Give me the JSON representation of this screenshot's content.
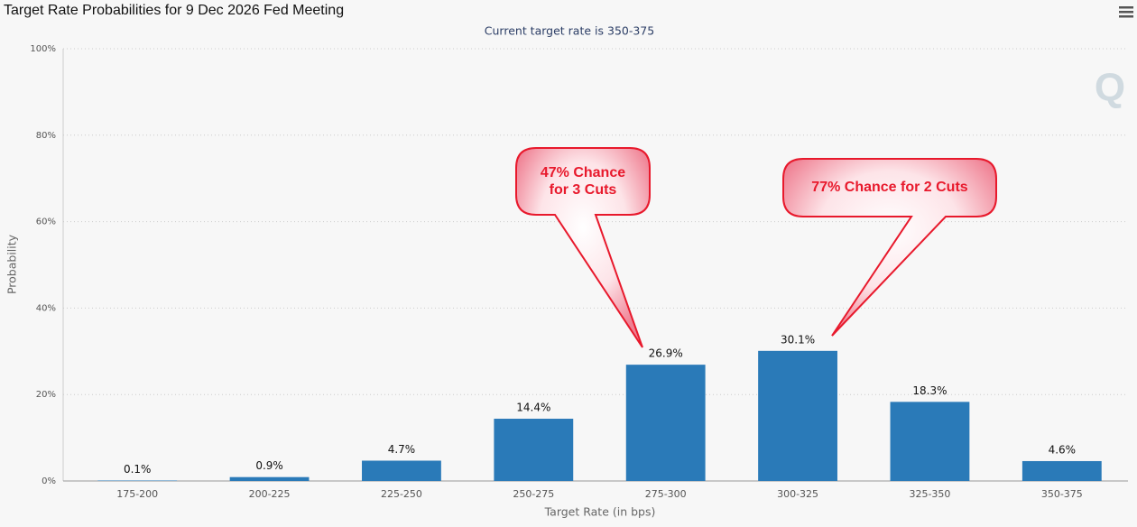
{
  "chart_data": {
    "type": "bar",
    "title": "Target Rate Probabilities for 9 Dec 2026 Fed Meeting",
    "subtitle": "Current target rate is 350-375",
    "xlabel": "Target Rate (in bps)",
    "ylabel": "Probability",
    "categories": [
      "175-200",
      "200-225",
      "225-250",
      "250-275",
      "275-300",
      "300-325",
      "325-350",
      "350-375"
    ],
    "values": [
      0.1,
      0.9,
      4.7,
      14.4,
      26.9,
      30.1,
      18.3,
      4.6
    ],
    "value_labels": [
      "0.1%",
      "0.9%",
      "4.7%",
      "14.4%",
      "26.9%",
      "30.1%",
      "18.3%",
      "4.6%"
    ],
    "color": "#2a7ab8",
    "ylim": [
      0,
      100
    ],
    "yticks": [
      {
        "value": 0,
        "label": "0%"
      },
      {
        "value": 20,
        "label": "20%"
      },
      {
        "value": 40,
        "label": "40%"
      },
      {
        "value": 60,
        "label": "60%"
      },
      {
        "value": 80,
        "label": "80%"
      },
      {
        "value": 100,
        "label": "100%"
      }
    ],
    "grid": true,
    "annotations": [
      {
        "text": "47% Chance for 3 Cuts"
      },
      {
        "text": "77% Chance for 2 Cuts"
      }
    ]
  }
}
